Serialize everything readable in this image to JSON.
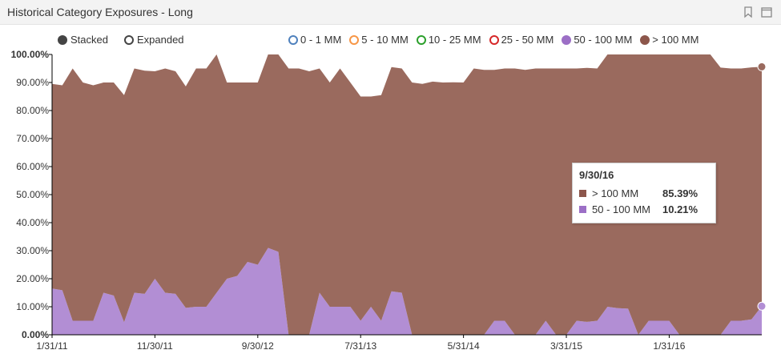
{
  "panel": {
    "title": "Historical Category Exposures - Long",
    "icons": [
      "bookmark-icon",
      "maximize-icon"
    ]
  },
  "view_mode": {
    "stacked_label": "Stacked",
    "expanded_label": "Expanded",
    "selected": "Stacked"
  },
  "legend": [
    {
      "label": "0 - 1 MM",
      "color": "#4f81bd"
    },
    {
      "label": "5 - 10 MM",
      "color": "#f79646"
    },
    {
      "label": "10 - 25 MM",
      "color": "#2ca02c"
    },
    {
      "label": "25 - 50 MM",
      "color": "#d62728"
    },
    {
      "label": "50 - 100 MM",
      "color": "#9c6fc6"
    },
    {
      "label": "> 100 MM",
      "color": "#8c564b"
    }
  ],
  "tooltip": {
    "date": "9/30/16",
    "rows": [
      {
        "label": "> 100 MM",
        "value": "85.39%",
        "color": "#8c564b"
      },
      {
        "label": "50 - 100 MM",
        "value": "10.21%",
        "color": "#9c6fc6"
      }
    ]
  },
  "chart_data": {
    "type": "area",
    "stacked": true,
    "ylim": [
      0,
      100
    ],
    "y_ticks": [
      "0.00%",
      "10.00%",
      "20.00%",
      "30.00%",
      "40.00%",
      "50.00%",
      "60.00%",
      "70.00%",
      "80.00%",
      "90.00%",
      "100.00%"
    ],
    "x_tick_labels": [
      "1/31/11",
      "11/30/11",
      "9/30/12",
      "7/31/13",
      "5/31/14",
      "3/31/15",
      "1/31/16"
    ],
    "x_tick_indices": [
      0,
      10,
      20,
      30,
      40,
      50,
      60
    ],
    "grid": false,
    "series": [
      {
        "name": "50 - 100 MM",
        "color": "#b28ed4",
        "values": [
          16.5,
          15.9,
          5,
          5,
          5,
          15,
          14,
          4.5,
          15,
          14.6,
          20,
          15,
          14.6,
          9.6,
          10,
          10,
          15,
          20,
          21,
          26,
          25,
          31,
          29.6,
          0,
          0,
          0,
          15,
          10,
          10,
          10,
          5,
          10,
          5,
          15.5,
          15,
          0,
          0,
          0,
          0,
          0,
          0,
          0,
          0,
          5,
          5,
          0,
          0,
          0,
          5,
          0,
          0,
          5,
          4.6,
          5,
          10,
          9.5,
          9.3,
          0,
          5,
          5,
          5,
          0,
          0,
          0,
          0,
          0,
          5,
          5,
          5.5,
          10.21
        ]
      },
      {
        "name": "> 100 MM",
        "color": "#9a6a5e",
        "values": [
          73,
          73.1,
          90,
          85,
          84,
          75,
          76,
          81,
          80,
          79.6,
          74,
          80,
          79.4,
          79,
          85,
          85,
          85,
          70,
          69,
          64,
          65,
          69,
          70.4,
          95,
          95,
          94,
          80,
          80,
          85,
          80,
          80,
          75,
          80.5,
          80,
          80,
          90,
          89.5,
          90.3,
          90,
          90.1,
          90,
          95,
          94.5,
          89.5,
          90,
          95,
          94.5,
          95,
          90,
          95,
          95,
          90,
          90.6,
          90,
          90,
          90.5,
          90.7,
          100,
          95,
          95,
          95,
          100,
          100,
          100,
          100,
          95.3,
          90,
          90,
          89.9,
          85.39
        ]
      }
    ],
    "tooltip_date": "9/30/16"
  }
}
